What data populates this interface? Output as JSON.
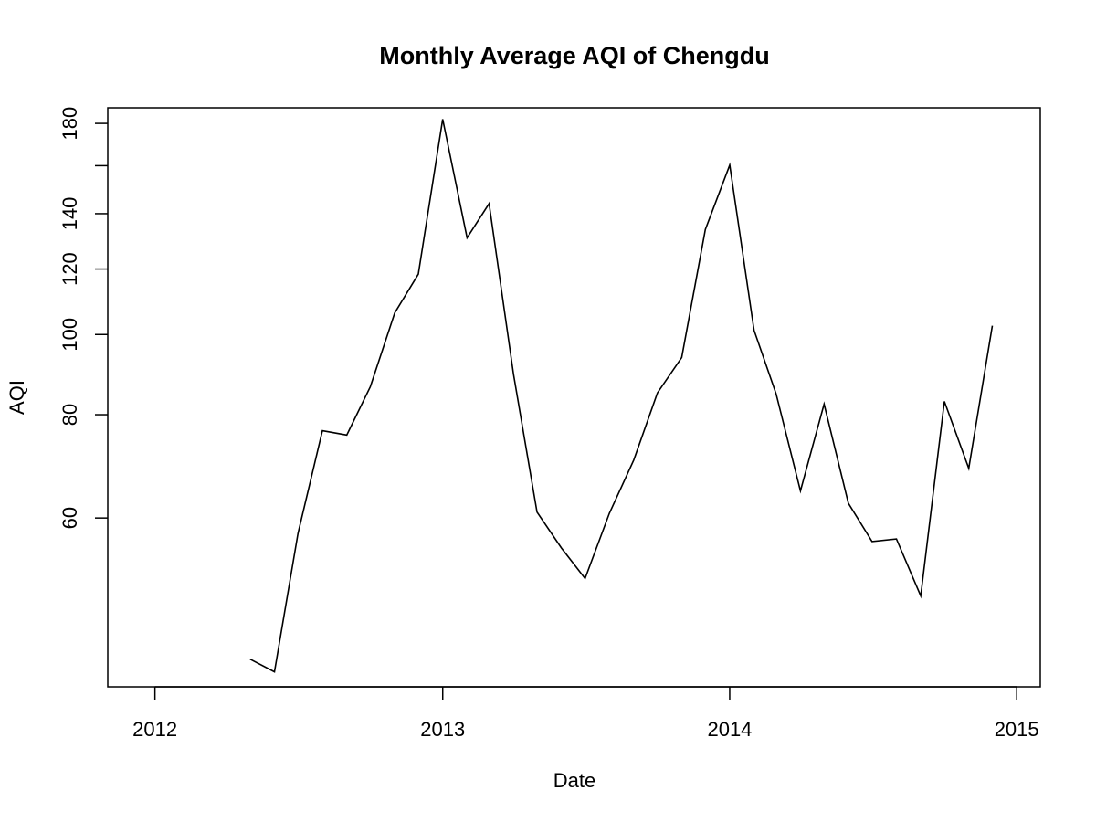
{
  "chart_data": {
    "type": "line",
    "title": "Monthly Average AQI of Chengdu",
    "xlabel": "Date",
    "ylabel": "AQI",
    "y_scale": "log",
    "xlim": [
      "2011-11-02",
      "2015-01-31"
    ],
    "ylim": [
      37.5,
      188
    ],
    "x_ticks": [
      {
        "value": "2012-01-01",
        "label": "2012"
      },
      {
        "value": "2013-01-01",
        "label": "2013"
      },
      {
        "value": "2014-01-01",
        "label": "2014"
      },
      {
        "value": "2015-01-01",
        "label": "2015"
      }
    ],
    "y_ticks": [
      {
        "value": 60,
        "label": "60"
      },
      {
        "value": 80,
        "label": "80"
      },
      {
        "value": 100,
        "label": "100"
      },
      {
        "value": 120,
        "label": "120"
      },
      {
        "value": 140,
        "label": "140"
      },
      {
        "value": 160,
        "label": ""
      },
      {
        "value": 180,
        "label": "180"
      }
    ],
    "grid": false,
    "legend": "none",
    "series": [
      {
        "color": "#000000",
        "x": [
          "2012-05-01",
          "2012-06-01",
          "2012-07-01",
          "2012-08-01",
          "2012-09-01",
          "2012-10-01",
          "2012-11-01",
          "2012-12-01",
          "2013-01-01",
          "2013-02-01",
          "2013-03-01",
          "2013-04-01",
          "2013-05-01",
          "2013-06-01",
          "2013-07-01",
          "2013-08-01",
          "2013-09-01",
          "2013-10-01",
          "2013-11-01",
          "2013-12-01",
          "2014-01-01",
          "2014-02-01",
          "2014-03-01",
          "2014-04-01",
          "2014-05-01",
          "2014-06-01",
          "2014-07-01",
          "2014-08-01",
          "2014-09-01",
          "2014-10-01",
          "2014-11-01",
          "2014-12-01"
        ],
        "y": [
          40.5,
          39.1,
          57.5,
          76.5,
          75.6,
          86.5,
          106.2,
          118.3,
          182.1,
          130.9,
          144.0,
          89.6,
          61.0,
          55.2,
          50.7,
          60.8,
          70.5,
          85.0,
          93.8,
          134.0,
          160.3,
          101.2,
          84.8,
          64.7,
          82.4,
          62.5,
          56.2,
          56.6,
          48.3,
          83.0,
          68.9,
          102.5
        ]
      }
    ]
  }
}
